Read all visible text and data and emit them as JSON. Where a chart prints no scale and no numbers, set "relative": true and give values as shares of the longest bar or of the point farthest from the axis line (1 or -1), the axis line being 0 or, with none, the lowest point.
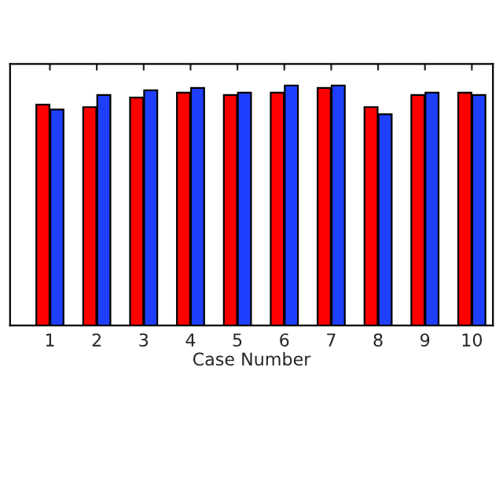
{
  "chart_data": {
    "type": "bar",
    "xlabel": "Case Number",
    "relative": true,
    "grid": false,
    "categories": [
      "1",
      "2",
      "3",
      "4",
      "5",
      "6",
      "7",
      "8",
      "9",
      "10"
    ],
    "series": [
      {
        "color": "#ff0000",
        "values": [
          0.92,
          0.91,
          0.95,
          0.97,
          0.96,
          0.97,
          0.99,
          0.91,
          0.96,
          0.97
        ]
      },
      {
        "color": "#1f3fff",
        "values": [
          0.9,
          0.96,
          0.98,
          0.99,
          0.97,
          1.0,
          1.0,
          0.88,
          0.97,
          0.96
        ]
      }
    ]
  }
}
